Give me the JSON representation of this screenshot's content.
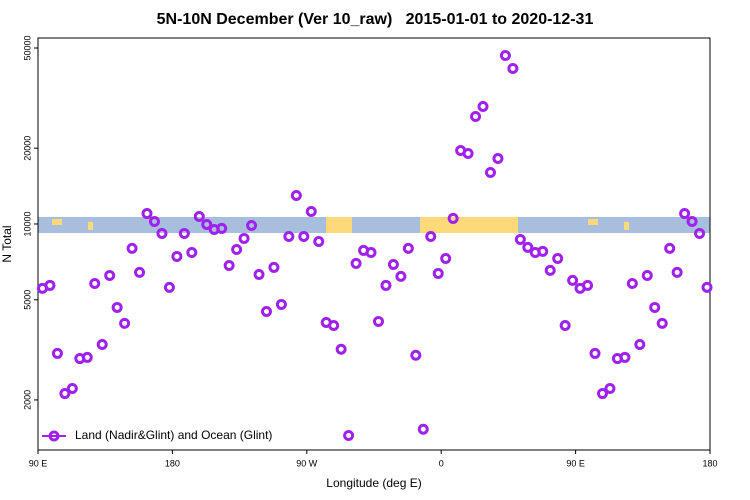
{
  "chart_data": {
    "type": "scatter",
    "title": "5N-10N December (Ver 10_raw)   2015-01-01 to 2020-12-31",
    "x_label": "Longitude (deg E)",
    "y_label": "N Total",
    "xlim": [
      90,
      540
    ],
    "xticks": [
      {
        "value": 90,
        "label": "90 E"
      },
      180,
      {
        "value": 270,
        "label": "90 W"
      },
      {
        "value": 360,
        "label": "0"
      },
      {
        "value": 450,
        "label": "90 E"
      },
      {
        "value": 540,
        "label": "180"
      }
    ],
    "ylim": [
      1265,
      54800
    ],
    "yticks": [
      2000,
      5000,
      10000,
      20000,
      50000
    ],
    "y_log": true,
    "legend": "bottom-left",
    "series": [
      {
        "name": "Land (Nadir&Glint) and Ocean (Glint)",
        "color": "#a020f0",
        "x": [
          93,
          98,
          103,
          108,
          113,
          118,
          123,
          128,
          133,
          138,
          143,
          148,
          153,
          158,
          163,
          168,
          173,
          178,
          183,
          188,
          193,
          198,
          203,
          208,
          213,
          218,
          223,
          228,
          233,
          238,
          243,
          248,
          253,
          258,
          263,
          268,
          273,
          278,
          283,
          288,
          293,
          298,
          303,
          308,
          313,
          318,
          323,
          328,
          333,
          338,
          343,
          348,
          353,
          358,
          363,
          368,
          373,
          378,
          383,
          388,
          393,
          398,
          403,
          408,
          413,
          418,
          423,
          428,
          433,
          438,
          443,
          448,
          453,
          458,
          463,
          468,
          473,
          478,
          483,
          488,
          493,
          498,
          503,
          508,
          513,
          518,
          523,
          528,
          533,
          538
        ],
        "values": [
          5550,
          5700,
          3060,
          2120,
          2220,
          2920,
          2950,
          5800,
          3320,
          6240,
          4660,
          4030,
          8000,
          6420,
          11000,
          10230,
          9170,
          5600,
          7430,
          9170,
          7700,
          10710,
          9950,
          9510,
          9600,
          6840,
          7920,
          8760,
          9860,
          6300,
          4490,
          6720,
          4790,
          8920,
          12980,
          8920,
          11210,
          8520,
          4060,
          3950,
          3180,
          1445,
          6970,
          7850,
          7700,
          4100,
          5700,
          6900,
          6190,
          8000,
          3010,
          1530,
          8920,
          6360,
          7290,
          10520,
          19590,
          19050,
          26730,
          29290,
          16010,
          18200,
          46700,
          41470,
          8680,
          8070,
          7700,
          7780,
          6540,
          7290,
          3950,
          5970,
          5550,
          5700,
          3060,
          2120,
          2220,
          2920,
          2950,
          5800,
          3320,
          6240,
          4660,
          4030,
          8000,
          6420,
          11000,
          10230,
          9170,
          5600
        ]
      }
    ]
  }
}
